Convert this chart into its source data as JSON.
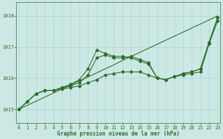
{
  "xlabel": "Graphe pression niveau de la mer (hPa)",
  "x_values": [
    0,
    1,
    2,
    3,
    4,
    5,
    6,
    7,
    8,
    9,
    10,
    11,
    12,
    13,
    14,
    15,
    16,
    17,
    18,
    19,
    20,
    21,
    22,
    23
  ],
  "line1_straight": [
    1015.0,
    1015.13,
    1015.26,
    1015.39,
    1015.52,
    1015.65,
    1015.78,
    1015.91,
    1016.04,
    1016.17,
    1016.3,
    1016.43,
    1016.57,
    1016.7,
    1016.83,
    1016.96,
    1017.09,
    1017.22,
    1017.35,
    1017.48,
    1017.61,
    1017.74,
    1017.87,
    1018.0
  ],
  "line2": [
    1015.0,
    1015.25,
    1015.5,
    1015.6,
    1015.6,
    1015.65,
    1015.7,
    1015.75,
    1015.85,
    1015.95,
    1016.1,
    1016.15,
    1016.2,
    1016.2,
    1016.2,
    1016.1,
    1016.0,
    1015.95,
    1016.05,
    1016.1,
    1016.15,
    1016.2,
    1017.1,
    1017.85
  ],
  "line3": [
    1015.0,
    1015.25,
    1015.5,
    1015.6,
    1015.6,
    1015.7,
    1015.75,
    1015.85,
    1016.1,
    1016.65,
    1016.75,
    1016.65,
    1016.65,
    1016.7,
    1016.6,
    1016.5,
    1016.0,
    1015.95,
    1016.05,
    1016.15,
    1016.2,
    1016.3,
    1017.15,
    1017.95
  ],
  "line4": [
    1015.0,
    1015.25,
    1015.5,
    1015.6,
    1015.6,
    1015.7,
    1015.8,
    1015.95,
    1016.3,
    1016.9,
    1016.8,
    1016.7,
    1016.7,
    1016.65,
    1016.55,
    1016.45,
    1016.0,
    1015.95,
    1016.05,
    1016.15,
    1016.2,
    1016.3,
    1017.15,
    1017.95
  ],
  "background": "#cce8e4",
  "grid_color": "#aad4ce",
  "line_color": "#2d6e2d",
  "ylim_min": 1014.55,
  "ylim_max": 1018.45,
  "yticks": [
    1015,
    1016,
    1017,
    1018
  ],
  "xticks": [
    0,
    1,
    2,
    3,
    4,
    5,
    6,
    7,
    8,
    9,
    10,
    11,
    12,
    13,
    14,
    15,
    16,
    17,
    18,
    19,
    20,
    21,
    22,
    23
  ]
}
